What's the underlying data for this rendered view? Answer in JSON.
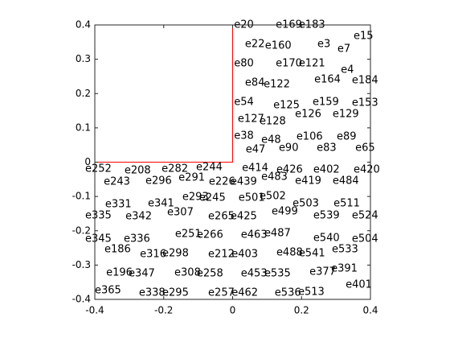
{
  "chart_data": {
    "type": "mesh",
    "xlim": [
      -0.4,
      0.4
    ],
    "ylim": [
      -0.4,
      0.4
    ],
    "xticks": [
      -0.4,
      -0.2,
      0,
      0.2,
      0.4
    ],
    "yticks": [
      -0.4,
      -0.3,
      -0.2,
      -0.1,
      0,
      0.1,
      0.2,
      0.3,
      0.4
    ],
    "boundary": {
      "color": "#ff0000",
      "x": [
        -0.4,
        0,
        0
      ],
      "y": [
        0,
        0,
        0.4
      ]
    },
    "label_color": "#000000",
    "elements": [
      {
        "label": "e20",
        "x": 0.004,
        "y": 0.4
      },
      {
        "label": "e169",
        "x": 0.125,
        "y": 0.4
      },
      {
        "label": "e183",
        "x": 0.192,
        "y": 0.4
      },
      {
        "label": "e15",
        "x": 0.351,
        "y": 0.367
      },
      {
        "label": "e22",
        "x": 0.036,
        "y": 0.344
      },
      {
        "label": "e160",
        "x": 0.094,
        "y": 0.339
      },
      {
        "label": "e3",
        "x": 0.246,
        "y": 0.344
      },
      {
        "label": "e7",
        "x": 0.304,
        "y": 0.33
      },
      {
        "label": "e80",
        "x": 0.004,
        "y": 0.287
      },
      {
        "label": "e170",
        "x": 0.125,
        "y": 0.287
      },
      {
        "label": "e121",
        "x": 0.192,
        "y": 0.287
      },
      {
        "label": "e4",
        "x": 0.314,
        "y": 0.269
      },
      {
        "label": "e84",
        "x": 0.036,
        "y": 0.231
      },
      {
        "label": "e122",
        "x": 0.09,
        "y": 0.226
      },
      {
        "label": "e164",
        "x": 0.237,
        "y": 0.24
      },
      {
        "label": "e184",
        "x": 0.346,
        "y": 0.238
      },
      {
        "label": "e54",
        "x": 0.004,
        "y": 0.175
      },
      {
        "label": "e125",
        "x": 0.118,
        "y": 0.165
      },
      {
        "label": "e159",
        "x": 0.232,
        "y": 0.175
      },
      {
        "label": "e153",
        "x": 0.346,
        "y": 0.172
      },
      {
        "label": "e126",
        "x": 0.181,
        "y": 0.14
      },
      {
        "label": "e129",
        "x": 0.29,
        "y": 0.14
      },
      {
        "label": "e127",
        "x": 0.015,
        "y": 0.126
      },
      {
        "label": "e128",
        "x": 0.078,
        "y": 0.118
      },
      {
        "label": "e38",
        "x": 0.004,
        "y": 0.076
      },
      {
        "label": "e48",
        "x": 0.083,
        "y": 0.065
      },
      {
        "label": "e106",
        "x": 0.185,
        "y": 0.074
      },
      {
        "label": "e89",
        "x": 0.302,
        "y": 0.074
      },
      {
        "label": "e47",
        "x": 0.038,
        "y": 0.036
      },
      {
        "label": "e90",
        "x": 0.134,
        "y": 0.041
      },
      {
        "label": "e83",
        "x": 0.244,
        "y": 0.041
      },
      {
        "label": "e65",
        "x": 0.356,
        "y": 0.041
      },
      {
        "label": "e252",
        "x": -0.428,
        "y": -0.02
      },
      {
        "label": "e208",
        "x": -0.314,
        "y": -0.025
      },
      {
        "label": "e282",
        "x": -0.206,
        "y": -0.02
      },
      {
        "label": "e244",
        "x": -0.106,
        "y": -0.015
      },
      {
        "label": "e414",
        "x": 0.027,
        "y": -0.018
      },
      {
        "label": "e426",
        "x": 0.127,
        "y": -0.022
      },
      {
        "label": "e402",
        "x": 0.234,
        "y": -0.022
      },
      {
        "label": "e420",
        "x": 0.351,
        "y": -0.022
      },
      {
        "label": "e243",
        "x": -0.374,
        "y": -0.057
      },
      {
        "label": "e296",
        "x": -0.253,
        "y": -0.055
      },
      {
        "label": "e291",
        "x": -0.157,
        "y": -0.046
      },
      {
        "label": "e226",
        "x": -0.069,
        "y": -0.057
      },
      {
        "label": "e439",
        "x": -0.006,
        "y": -0.057
      },
      {
        "label": "e483",
        "x": 0.083,
        "y": -0.043
      },
      {
        "label": "e419",
        "x": 0.181,
        "y": -0.055
      },
      {
        "label": "e484",
        "x": 0.29,
        "y": -0.055
      },
      {
        "label": "e293",
        "x": -0.146,
        "y": -0.102
      },
      {
        "label": "e245",
        "x": -0.097,
        "y": -0.104
      },
      {
        "label": "e501",
        "x": 0.017,
        "y": -0.104
      },
      {
        "label": "e502",
        "x": 0.078,
        "y": -0.1
      },
      {
        "label": "e331",
        "x": -0.37,
        "y": -0.123
      },
      {
        "label": "e341",
        "x": -0.246,
        "y": -0.121
      },
      {
        "label": "e503",
        "x": 0.174,
        "y": -0.121
      },
      {
        "label": "e511",
        "x": 0.293,
        "y": -0.121
      },
      {
        "label": "e307",
        "x": -0.19,
        "y": -0.147
      },
      {
        "label": "e499",
        "x": 0.113,
        "y": -0.144
      },
      {
        "label": "e335",
        "x": -0.428,
        "y": -0.156
      },
      {
        "label": "e342",
        "x": -0.311,
        "y": -0.158
      },
      {
        "label": "e265",
        "x": -0.071,
        "y": -0.158
      },
      {
        "label": "e425",
        "x": -0.006,
        "y": -0.158
      },
      {
        "label": "e539",
        "x": 0.234,
        "y": -0.156
      },
      {
        "label": "e524",
        "x": 0.346,
        "y": -0.156
      },
      {
        "label": "e251",
        "x": -0.167,
        "y": -0.21
      },
      {
        "label": "e266",
        "x": -0.104,
        "y": -0.212
      },
      {
        "label": "e463",
        "x": 0.024,
        "y": -0.212
      },
      {
        "label": "e487",
        "x": 0.092,
        "y": -0.208
      },
      {
        "label": "e345",
        "x": -0.428,
        "y": -0.224
      },
      {
        "label": "e336",
        "x": -0.316,
        "y": -0.224
      },
      {
        "label": "e540",
        "x": 0.234,
        "y": -0.222
      },
      {
        "label": "e504",
        "x": 0.346,
        "y": -0.224
      },
      {
        "label": "e533",
        "x": 0.288,
        "y": -0.255
      },
      {
        "label": "e186",
        "x": -0.372,
        "y": -0.255
      },
      {
        "label": "e316",
        "x": -0.269,
        "y": -0.269
      },
      {
        "label": "e298",
        "x": -0.204,
        "y": -0.266
      },
      {
        "label": "e212",
        "x": -0.071,
        "y": -0.269
      },
      {
        "label": "e403",
        "x": -0.003,
        "y": -0.269
      },
      {
        "label": "e488",
        "x": 0.127,
        "y": -0.264
      },
      {
        "label": "e541",
        "x": 0.192,
        "y": -0.266
      },
      {
        "label": "e391",
        "x": 0.286,
        "y": -0.311
      },
      {
        "label": "e377",
        "x": 0.223,
        "y": -0.32
      },
      {
        "label": "e196",
        "x": -0.367,
        "y": -0.323
      },
      {
        "label": "e347",
        "x": -0.302,
        "y": -0.325
      },
      {
        "label": "e308",
        "x": -0.169,
        "y": -0.323
      },
      {
        "label": "e258",
        "x": -0.104,
        "y": -0.325
      },
      {
        "label": "e453",
        "x": 0.024,
        "y": -0.325
      },
      {
        "label": "e535",
        "x": 0.092,
        "y": -0.325
      },
      {
        "label": "e401",
        "x": 0.328,
        "y": -0.358
      },
      {
        "label": "e365",
        "x": -0.4,
        "y": -0.374
      },
      {
        "label": "e338",
        "x": -0.272,
        "y": -0.381
      },
      {
        "label": "e295",
        "x": -0.204,
        "y": -0.381
      },
      {
        "label": "e257",
        "x": -0.071,
        "y": -0.381
      },
      {
        "label": "e462",
        "x": -0.003,
        "y": -0.381
      },
      {
        "label": "e536",
        "x": 0.122,
        "y": -0.381
      },
      {
        "label": "e513",
        "x": 0.19,
        "y": -0.379
      }
    ]
  }
}
